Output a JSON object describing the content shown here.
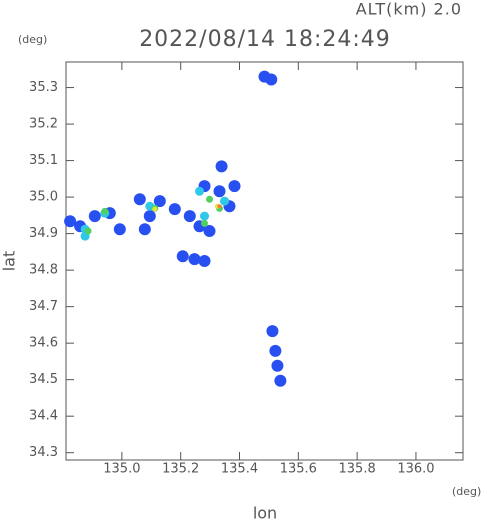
{
  "chart_data": {
    "type": "scatter",
    "title": "2022/08/14 18:24:49",
    "subtitle": "ALT(km) 2.0",
    "y_unit": "(deg)",
    "x_unit": "(deg)",
    "xlabel": "lon",
    "ylabel": "lat",
    "xlim": [
      134.81,
      136.16
    ],
    "ylim": [
      34.28,
      35.37
    ],
    "xticks": [
      {
        "value": 135.0,
        "label": "135.0"
      },
      135.2,
      135.4,
      135.6,
      135.8,
      {
        "value": 136.0,
        "label": "136.0"
      }
    ],
    "yticks": [
      34.3,
      34.4,
      34.5,
      34.6,
      34.7,
      34.8,
      34.9,
      {
        "value": 35.0,
        "label": "35.0"
      },
      35.1,
      35.2,
      35.3
    ],
    "series": [
      {
        "color": "#2850f0",
        "x": [
          135.485,
          135.508,
          134.858,
          134.824,
          134.908,
          134.959,
          134.993,
          135.061,
          135.129,
          135.095,
          135.078,
          135.18,
          135.231,
          135.264,
          135.298,
          135.281,
          135.332,
          135.366,
          135.383,
          135.339,
          135.207,
          135.247,
          135.281,
          135.512,
          135.522,
          135.529,
          135.539
        ],
        "values": [
          35.33,
          35.322,
          34.92,
          34.934,
          34.948,
          34.956,
          34.912,
          34.994,
          34.989,
          34.948,
          34.912,
          34.967,
          34.948,
          34.92,
          34.907,
          35.03,
          35.016,
          34.975,
          35.03,
          35.084,
          34.838,
          34.83,
          34.825,
          34.633,
          34.579,
          34.538,
          34.497
        ]
      },
      {
        "color": "#30c8e8",
        "x": [
          134.875,
          134.942,
          135.095,
          135.264,
          135.281,
          135.349,
          134.875
        ],
        "values": [
          34.912,
          34.956,
          34.975,
          35.016,
          34.948,
          34.989,
          34.893
        ]
      },
      {
        "color": "#50d060",
        "x": [
          134.885,
          134.942,
          135.112,
          135.298,
          135.281,
          135.332
        ],
        "values": [
          34.907,
          34.961,
          34.969,
          34.994,
          34.928,
          34.969
        ]
      },
      {
        "color": "#e8e040",
        "x": [
          135.325,
          135.112
        ],
        "values": [
          34.975,
          34.967
        ]
      },
      {
        "color": "#f08030",
        "x": [
          135.332
        ],
        "values": [
          34.975
        ]
      }
    ]
  }
}
